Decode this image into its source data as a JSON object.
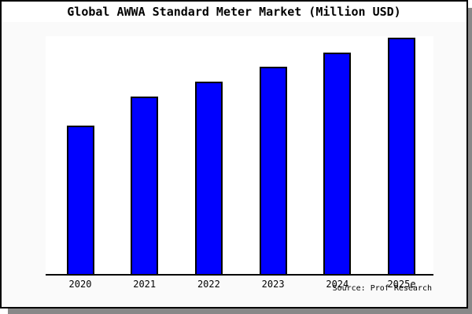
{
  "title": "Global AWWA Standard Meter Market (Million USD)",
  "source_note": "Source: Prof Research",
  "frame": {
    "border_color": "#000000",
    "figure_background": "#fafafa",
    "title_band_background": "#ffffff",
    "shadow_color": "#888888"
  },
  "chart_data": {
    "type": "bar",
    "title": "Global AWWA Standard Meter Market (Million USD)",
    "categories": [
      "2020",
      "2021",
      "2022",
      "2023",
      "2024",
      "2025e"
    ],
    "values": [
      62.8,
      75.2,
      81.5,
      87.6,
      93.6,
      100
    ],
    "value_scale": "relative percent of tallest bar (2025e); no y-axis tick labels are shown in the chart",
    "xlabel": "",
    "ylabel": "",
    "ylim": [
      0,
      100
    ],
    "grid": false,
    "legend": false,
    "y_axis_visible": false,
    "bar_color": "#0000ff",
    "bar_border_color": "#000000",
    "plot_background": "#ffffff",
    "annotation": "Source: Prof Research"
  }
}
